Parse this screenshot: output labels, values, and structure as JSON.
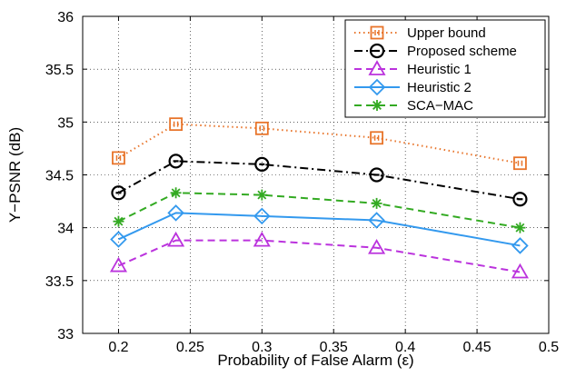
{
  "chart_data": {
    "type": "line",
    "title": "",
    "xlabel": "Probability of False Alarm (ε)",
    "ylabel": "Y−PSNR (dB)",
    "xlim": [
      0.175,
      0.5
    ],
    "ylim": [
      33,
      36
    ],
    "xticks": [
      0.2,
      0.25,
      0.3,
      0.35,
      0.4,
      0.45,
      0.5
    ],
    "xtick_labels": [
      "0.2",
      "0.25",
      "0.3",
      "0.35",
      "0.4",
      "0.45",
      "0.5"
    ],
    "yticks": [
      33,
      33.5,
      34,
      34.5,
      35,
      35.5,
      36
    ],
    "ytick_labels": [
      "33",
      "33.5",
      "34",
      "34.5",
      "35",
      "35.5",
      "36"
    ],
    "grid": true,
    "legend_position": "top-right",
    "x": [
      0.2,
      0.24,
      0.3,
      0.38,
      0.48
    ],
    "series": [
      {
        "name": "Upper bound",
        "values": [
          34.66,
          34.98,
          34.94,
          34.85,
          34.61
        ],
        "color": "#e8742a",
        "dash": "dotted",
        "marker": "square"
      },
      {
        "name": "Proposed scheme",
        "values": [
          34.33,
          34.63,
          34.6,
          34.5,
          34.27
        ],
        "color": "#000000",
        "dash": "dashdot",
        "marker": "circle-dot"
      },
      {
        "name": "Heuristic 1",
        "values": [
          33.64,
          33.88,
          33.88,
          33.81,
          33.58
        ],
        "color": "#bb33dd",
        "dash": "dashed",
        "marker": "triangle"
      },
      {
        "name": "Heuristic 2",
        "values": [
          33.89,
          34.14,
          34.11,
          34.07,
          33.83
        ],
        "color": "#3399ee",
        "dash": "solid",
        "marker": "diamond"
      },
      {
        "name": "SCA−MAC",
        "values": [
          34.06,
          34.33,
          34.31,
          34.23,
          34.0
        ],
        "color": "#33aa22",
        "dash": "dashed",
        "marker": "star"
      }
    ]
  }
}
